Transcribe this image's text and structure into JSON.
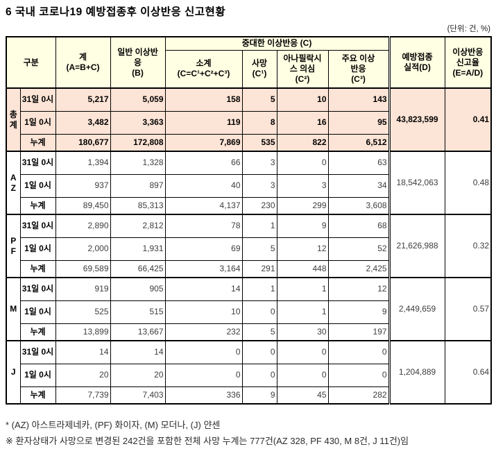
{
  "page": {
    "title": "6  국내 코로나19 예방접종후 이상반응 신고현황",
    "unit_note": "(단위: 건, %)"
  },
  "colors": {
    "header_bg": "#FFFFE3",
    "total_row_bg": "#FCE4D6",
    "border": "#000000"
  },
  "table": {
    "header": {
      "gubun": "구분",
      "total": "계\n(A=B+C)",
      "general": "일반 이상반\n응\n(B)",
      "serious_group": "중대한 이상반응 (C)",
      "subtotal": "소계\n(C=C¹+C²+C³)",
      "death": "사망\n(C¹)",
      "anaphylaxis": "아나필락시\n스 의심\n(C²)",
      "major": "주요  이상\n반응\n(C³)",
      "doses": "예방접종\n실적(D)",
      "rate": "이상반응\n신고율\n(E=A/D)"
    },
    "row_labels": [
      "31일 0시",
      "1일 0시",
      "누계"
    ],
    "sections": [
      {
        "label": "총계",
        "highlight": true,
        "rows": [
          [
            "5,217",
            "5,059",
            "158",
            "5",
            "10",
            "143"
          ],
          [
            "3,482",
            "3,363",
            "119",
            "8",
            "16",
            "95"
          ],
          [
            "180,677",
            "172,808",
            "7,869",
            "535",
            "822",
            "6,512"
          ]
        ],
        "doses": "43,823,599",
        "rate": "0.41"
      },
      {
        "label": "AZ",
        "highlight": false,
        "rows": [
          [
            "1,394",
            "1,328",
            "66",
            "3",
            "0",
            "63"
          ],
          [
            "937",
            "897",
            "40",
            "3",
            "3",
            "34"
          ],
          [
            "89,450",
            "85,313",
            "4,137",
            "230",
            "299",
            "3,608"
          ]
        ],
        "doses": "18,542,063",
        "rate": "0.48"
      },
      {
        "label": "PF",
        "highlight": false,
        "rows": [
          [
            "2,890",
            "2,812",
            "78",
            "1",
            "9",
            "68"
          ],
          [
            "2,000",
            "1,931",
            "69",
            "5",
            "12",
            "52"
          ],
          [
            "69,589",
            "66,425",
            "3,164",
            "291",
            "448",
            "2,425"
          ]
        ],
        "doses": "21,626,988",
        "rate": "0.32"
      },
      {
        "label": "M",
        "highlight": false,
        "rows": [
          [
            "919",
            "905",
            "14",
            "1",
            "1",
            "12"
          ],
          [
            "525",
            "515",
            "10",
            "0",
            "1",
            "9"
          ],
          [
            "13,899",
            "13,667",
            "232",
            "5",
            "30",
            "197"
          ]
        ],
        "doses": "2,449,659",
        "rate": "0.57"
      },
      {
        "label": "J",
        "highlight": false,
        "rows": [
          [
            "14",
            "14",
            "0",
            "0",
            "0",
            "0"
          ],
          [
            "20",
            "20",
            "0",
            "0",
            "0",
            "0"
          ],
          [
            "7,739",
            "7,403",
            "336",
            "9",
            "45",
            "282"
          ]
        ],
        "doses": "1,204,889",
        "rate": "0.64"
      }
    ]
  },
  "footnotes": [
    "* (AZ) 아스트라제네카, (PF) 화이자, (M) 모더나, (J) 얀센",
    "※ 환자상태가 사망으로 변경된 242건을 포함한 전체 사망 누계는 777건(AZ 328, PF 430, M 8건, J 11건)임"
  ]
}
